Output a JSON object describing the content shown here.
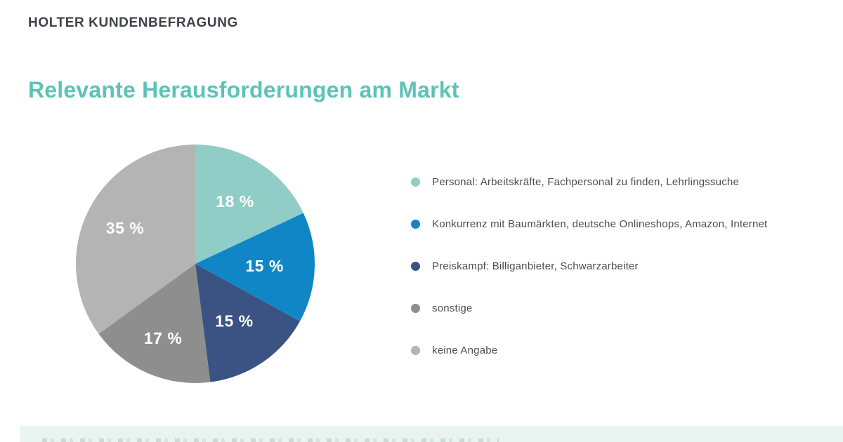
{
  "header": {
    "label": "HOLTER KUNDENBEFRAGUNG"
  },
  "title": "Relevante Herausforderungen am Markt",
  "chart_data": {
    "type": "pie",
    "title": "Relevante Herausforderungen am Markt",
    "direction": "clockwise",
    "start_angle_deg": 0,
    "legend_position": "right",
    "value_labels": "inside, white, bold, format 'NN %'",
    "slices": [
      {
        "label": "Personal: Arbeitskräfte, Fachpersonal zu finden, Lehrlingssuche",
        "value": 18,
        "display": "18 %",
        "color": "#90cdc6"
      },
      {
        "label": "Konkurrenz mit Baumärkten, deutsche Onlineshops, Amazon, Internet",
        "value": 15,
        "display": "15 %",
        "color": "#1086c6"
      },
      {
        "label": "Preiskampf: Billiganbieter, Schwarzarbeiter",
        "value": 15,
        "display": "15 %",
        "color": "#3b5383"
      },
      {
        "label": "sonstige",
        "value": 17,
        "display": "17 %",
        "color": "#8e8e8e"
      },
      {
        "label": "keine Angabe",
        "value": 35,
        "display": "35 %",
        "color": "#b4b4b4"
      }
    ]
  },
  "colors": {
    "background": "#ffffff",
    "header_text": "#3c4249",
    "title_text": "#5cc3b6",
    "legend_text": "#4d4d4d",
    "footer_bar": "#e9f4f1"
  }
}
